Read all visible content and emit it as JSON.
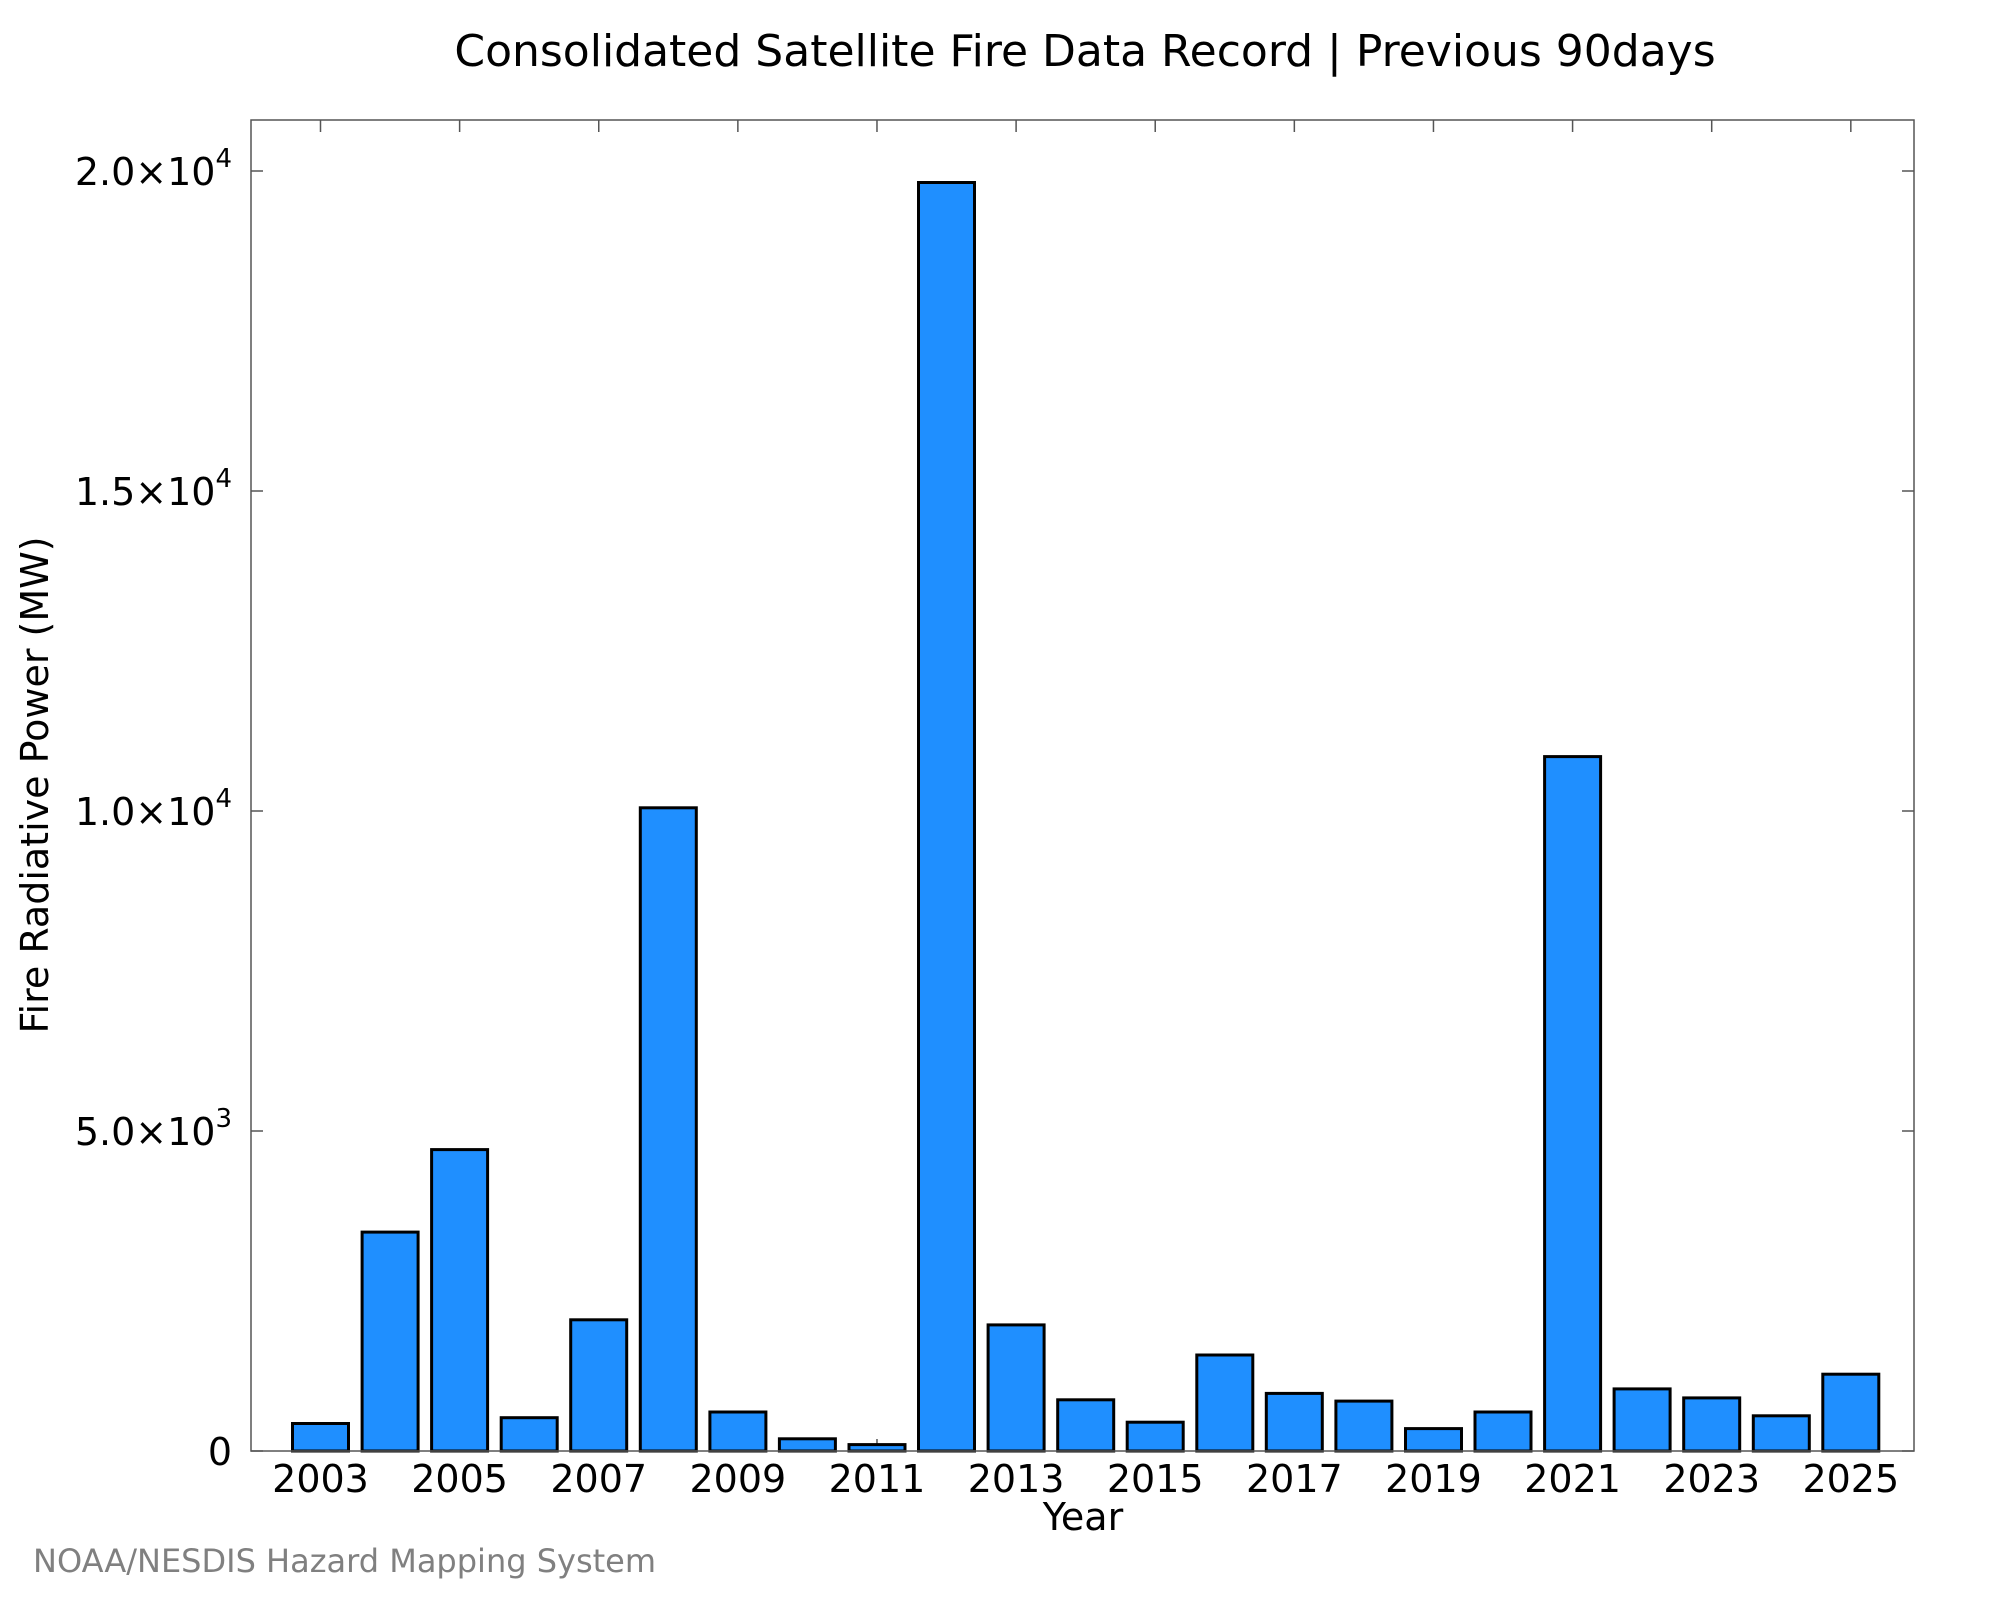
{
  "chart_data": {
    "type": "bar",
    "title": "Consolidated Satellite Fire Data Record | Previous 90days",
    "xlabel": "Year",
    "ylabel": "Fire Radiative Power (MW)",
    "credit": "NOAA/NESDIS Hazard Mapping System",
    "bar_color": "#1f8fff",
    "grid": false,
    "ylim": [
      0,
      20800
    ],
    "y_ticks": [
      {
        "value": 0,
        "mantissa": "0",
        "exponent": ""
      },
      {
        "value": 5000,
        "mantissa": "5.0×10",
        "exponent": "3"
      },
      {
        "value": 10000,
        "mantissa": "1.0×10",
        "exponent": "4"
      },
      {
        "value": 15000,
        "mantissa": "1.5×10",
        "exponent": "4"
      },
      {
        "value": 20000,
        "mantissa": "2.0×10",
        "exponent": "4"
      }
    ],
    "x_tick_labels": [
      "2003",
      "2005",
      "2007",
      "2009",
      "2011",
      "2013",
      "2015",
      "2017",
      "2019",
      "2021",
      "2023",
      "2025"
    ],
    "categories": [
      "2003",
      "2004",
      "2005",
      "2006",
      "2007",
      "2008",
      "2009",
      "2010",
      "2011",
      "2012",
      "2013",
      "2014",
      "2015",
      "2016",
      "2017",
      "2018",
      "2019",
      "2020",
      "2021",
      "2022",
      "2023",
      "2024",
      "2025"
    ],
    "values": [
      430,
      3420,
      4710,
      520,
      2050,
      10050,
      610,
      190,
      100,
      19820,
      1970,
      800,
      450,
      1500,
      900,
      780,
      350,
      610,
      10850,
      970,
      830,
      550,
      1200
    ]
  }
}
